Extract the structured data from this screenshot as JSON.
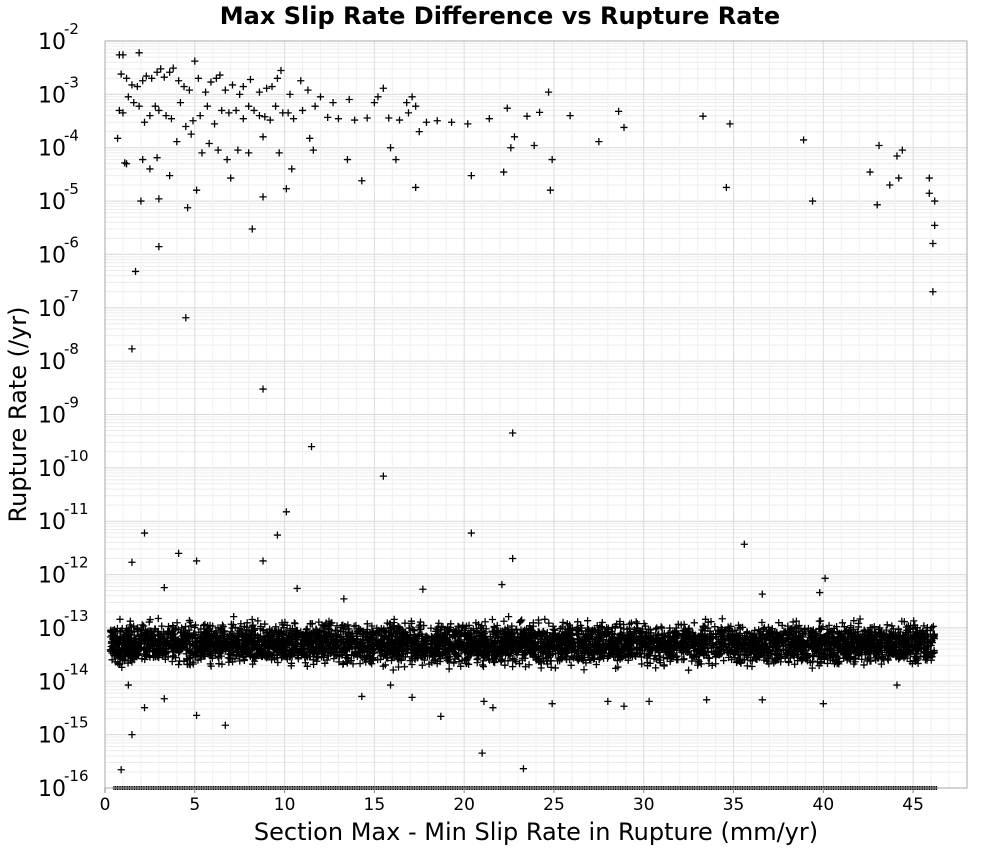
{
  "chart_data": {
    "type": "scatter",
    "title": "Max Slip Rate Difference vs Rupture Rate",
    "xlabel": "Section Max - Min Slip Rate in Rupture (mm/yr)",
    "ylabel": "Rupture Rate (/yr)",
    "xlim": [
      0,
      48
    ],
    "ylim": [
      1e-16,
      0.01
    ],
    "yscale": "log",
    "grid": true,
    "marker": "+",
    "marker_color": "#000000",
    "x_ticks": [
      "0",
      "5",
      "10",
      "15",
      "20",
      "25",
      "30",
      "35",
      "40",
      "45"
    ],
    "y_ticks": [
      {
        "base": "10",
        "exp": "-16"
      },
      {
        "base": "10",
        "exp": "-15"
      },
      {
        "base": "10",
        "exp": "-14"
      },
      {
        "base": "10",
        "exp": "-13"
      },
      {
        "base": "10",
        "exp": "-12"
      },
      {
        "base": "10",
        "exp": "-11"
      },
      {
        "base": "10",
        "exp": "-10"
      },
      {
        "base": "10",
        "exp": "-9"
      },
      {
        "base": "10",
        "exp": "-8"
      },
      {
        "base": "10",
        "exp": "-7"
      },
      {
        "base": "10",
        "exp": "-6"
      },
      {
        "base": "10",
        "exp": "-5"
      },
      {
        "base": "10",
        "exp": "-4"
      },
      {
        "base": "10",
        "exp": "-3"
      },
      {
        "base": "10",
        "exp": "-2"
      }
    ],
    "points": [
      [
        0.8,
        0.0055
      ],
      [
        1.0,
        0.0055
      ],
      [
        1.9,
        0.006
      ],
      [
        5.0,
        0.0042
      ],
      [
        0.9,
        0.0024
      ],
      [
        1.2,
        0.002
      ],
      [
        1.5,
        0.0015
      ],
      [
        1.8,
        0.0014
      ],
      [
        2.1,
        0.0018
      ],
      [
        2.3,
        0.0022
      ],
      [
        2.6,
        0.002
      ],
      [
        2.9,
        0.0026
      ],
      [
        3.1,
        0.003
      ],
      [
        3.3,
        0.0021
      ],
      [
        3.6,
        0.0026
      ],
      [
        3.8,
        0.0031
      ],
      [
        4.1,
        0.0018
      ],
      [
        4.4,
        0.0014
      ],
      [
        4.7,
        0.0012
      ],
      [
        5.2,
        0.002
      ],
      [
        5.6,
        0.0011
      ],
      [
        5.9,
        0.0017
      ],
      [
        6.2,
        0.002
      ],
      [
        6.4,
        0.0023
      ],
      [
        6.7,
        0.0012
      ],
      [
        7.1,
        0.0015
      ],
      [
        7.5,
        0.001
      ],
      [
        7.7,
        0.0014
      ],
      [
        8.1,
        0.0019
      ],
      [
        8.6,
        0.0011
      ],
      [
        9.0,
        0.0013
      ],
      [
        9.3,
        0.0014
      ],
      [
        9.6,
        0.002
      ],
      [
        9.8,
        0.0028
      ],
      [
        10.3,
        0.001
      ],
      [
        10.9,
        0.0018
      ],
      [
        11.3,
        0.0012
      ],
      [
        12.0,
        0.0009
      ],
      [
        12.7,
        0.0007
      ],
      [
        13.6,
        0.0008
      ],
      [
        15.2,
        0.0009
      ],
      [
        15.5,
        0.0013
      ],
      [
        16.8,
        0.0007
      ],
      [
        17.1,
        0.0009
      ],
      [
        24.7,
        0.0011
      ],
      [
        0.8,
        0.0005
      ],
      [
        1.0,
        0.00045
      ],
      [
        1.3,
        0.0009
      ],
      [
        1.6,
        0.0007
      ],
      [
        1.9,
        0.0006
      ],
      [
        2.2,
        0.0003
      ],
      [
        2.5,
        0.0004
      ],
      [
        2.8,
        0.0006
      ],
      [
        3.0,
        0.0005
      ],
      [
        3.4,
        0.0004
      ],
      [
        3.7,
        0.00035
      ],
      [
        4.2,
        0.0007
      ],
      [
        4.5,
        0.00025
      ],
      [
        4.9,
        0.00032
      ],
      [
        5.3,
        0.0004
      ],
      [
        5.7,
        0.0006
      ],
      [
        6.1,
        0.00028
      ],
      [
        6.5,
        0.0005
      ],
      [
        6.9,
        0.00045
      ],
      [
        7.3,
        0.0005
      ],
      [
        7.7,
        0.00035
      ],
      [
        8.0,
        0.0006
      ],
      [
        8.3,
        0.0005
      ],
      [
        8.6,
        0.0004
      ],
      [
        8.9,
        0.00038
      ],
      [
        9.2,
        0.00033
      ],
      [
        9.5,
        0.0006
      ],
      [
        9.9,
        0.00045
      ],
      [
        10.2,
        0.00045
      ],
      [
        10.5,
        0.00035
      ],
      [
        11.0,
        0.0005
      ],
      [
        11.7,
        0.0006
      ],
      [
        12.4,
        0.00037
      ],
      [
        13.0,
        0.00035
      ],
      [
        13.9,
        0.00033
      ],
      [
        14.6,
        0.00036
      ],
      [
        15.0,
        0.0007
      ],
      [
        15.8,
        0.00036
      ],
      [
        16.4,
        0.00033
      ],
      [
        16.9,
        0.00045
      ],
      [
        17.3,
        0.0006
      ],
      [
        17.9,
        0.0003
      ],
      [
        18.5,
        0.00032
      ],
      [
        19.3,
        0.0003
      ],
      [
        20.2,
        0.00028
      ],
      [
        21.4,
        0.00035
      ],
      [
        22.4,
        0.00055
      ],
      [
        23.5,
        0.00039
      ],
      [
        24.2,
        0.00046
      ],
      [
        25.9,
        0.0004
      ],
      [
        28.6,
        0.00048
      ],
      [
        28.9,
        0.00024
      ],
      [
        33.3,
        0.00039
      ],
      [
        34.8,
        0.00028
      ],
      [
        0.7,
        0.00015
      ],
      [
        1.2,
        5e-05
      ],
      [
        2.1,
        6e-05
      ],
      [
        2.5,
        4e-05
      ],
      [
        2.9,
        6.5e-05
      ],
      [
        3.6,
        3e-05
      ],
      [
        4.0,
        0.00013
      ],
      [
        4.8,
        0.00018
      ],
      [
        5.4,
        8e-05
      ],
      [
        5.8,
        0.00012
      ],
      [
        6.3,
        9e-05
      ],
      [
        6.8,
        6e-05
      ],
      [
        7.4,
        9e-05
      ],
      [
        8.0,
        8e-05
      ],
      [
        8.8,
        0.00016
      ],
      [
        9.7,
        8e-05
      ],
      [
        10.4,
        4e-05
      ],
      [
        11.4,
        0.00015
      ],
      [
        11.6,
        9e-05
      ],
      [
        13.5,
        6e-05
      ],
      [
        15.9,
        0.0001
      ],
      [
        16.2,
        6e-05
      ],
      [
        17.5,
        0.0002
      ],
      [
        20.4,
        3e-05
      ],
      [
        22.2,
        3.5e-05
      ],
      [
        22.6,
        0.0001
      ],
      [
        22.8,
        0.00016
      ],
      [
        23.9,
        0.00011
      ],
      [
        24.9,
        6e-05
      ],
      [
        27.5,
        0.00013
      ],
      [
        38.9,
        0.00014
      ],
      [
        42.6,
        3.5e-05
      ],
      [
        43.1,
        0.00011
      ],
      [
        43.7,
        2e-05
      ],
      [
        44.1,
        7e-05
      ],
      [
        44.4,
        9e-05
      ],
      [
        45.9,
        2.7e-05
      ],
      [
        1.1,
        5.2e-05
      ],
      [
        2.0,
        1e-05
      ],
      [
        3.0,
        1.1e-05
      ],
      [
        4.6,
        7.5e-06
      ],
      [
        5.1,
        1.6e-05
      ],
      [
        7.0,
        2.7e-05
      ],
      [
        8.8,
        1.2e-05
      ],
      [
        10.1,
        1.7e-05
      ],
      [
        14.3,
        2.4e-05
      ],
      [
        17.3,
        1.8e-05
      ],
      [
        24.8,
        1.6e-05
      ],
      [
        34.6,
        1.8e-05
      ],
      [
        39.4,
        1e-05
      ],
      [
        43.0,
        8.5e-06
      ],
      [
        44.2,
        2.7e-05
      ],
      [
        45.9,
        1.4e-05
      ],
      [
        46.2,
        1e-05
      ],
      [
        8.2,
        3e-06
      ],
      [
        3.0,
        1.4e-06
      ],
      [
        46.2,
        3.5e-06
      ],
      [
        46.1,
        1.6e-06
      ],
      [
        1.7,
        4.8e-07
      ],
      [
        4.5,
        6.5e-08
      ],
      [
        46.1,
        2e-07
      ],
      [
        1.5,
        1.7e-08
      ],
      [
        8.8,
        3e-09
      ],
      [
        22.7,
        4.5e-10
      ],
      [
        11.5,
        2.5e-10
      ],
      [
        15.5,
        7e-11
      ],
      [
        10.1,
        1.5e-11
      ],
      [
        2.2,
        6e-12
      ],
      [
        9.6,
        5.5e-12
      ],
      [
        20.4,
        6e-12
      ],
      [
        4.1,
        2.5e-12
      ],
      [
        1.5,
        1.7e-12
      ],
      [
        5.1,
        1.8e-12
      ],
      [
        8.8,
        1.8e-12
      ],
      [
        22.7,
        2e-12
      ],
      [
        35.6,
        3.7e-12
      ],
      [
        3.3,
        5.7e-13
      ],
      [
        10.7,
        5.5e-13
      ],
      [
        17.7,
        5.3e-13
      ],
      [
        22.1,
        6.5e-13
      ],
      [
        36.6,
        4.3e-13
      ],
      [
        39.8,
        4.6e-13
      ],
      [
        40.1,
        8.5e-13
      ],
      [
        13.3,
        3.5e-13
      ],
      [
        6.7,
        1.5e-15
      ],
      [
        5.1,
        2.3e-15
      ],
      [
        2.2,
        3.2e-15
      ],
      [
        1.5,
        1e-15
      ],
      [
        0.9,
        2.2e-16
      ],
      [
        21.0,
        4.5e-16
      ],
      [
        23.3,
        2.3e-16
      ],
      [
        18.7,
        2.2e-15
      ],
      [
        21.1,
        4.2e-15
      ],
      [
        21.6,
        3.2e-15
      ],
      [
        15.9,
        8.5e-15
      ],
      [
        17.1,
        5e-15
      ],
      [
        28.0,
        4.2e-15
      ],
      [
        28.9,
        3.4e-15
      ],
      [
        30.3,
        4.2e-15
      ],
      [
        33.5,
        4.5e-15
      ],
      [
        36.6,
        4.5e-15
      ],
      [
        40.0,
        3.8e-15
      ],
      [
        24.9,
        3.8e-15
      ],
      [
        14.3,
        5.2e-15
      ],
      [
        3.3,
        4.7e-15
      ],
      [
        1.3,
        8.5e-15
      ],
      [
        44.1,
        8.5e-15
      ]
    ],
    "dense_band": {
      "x_range": [
        0.3,
        46.2
      ],
      "y_range": [
        1.5e-14,
        1.7e-13
      ],
      "count": 5200
    },
    "floor_row": {
      "x_range": [
        0.5,
        46.3
      ],
      "y": 1e-16,
      "count": 480
    }
  }
}
